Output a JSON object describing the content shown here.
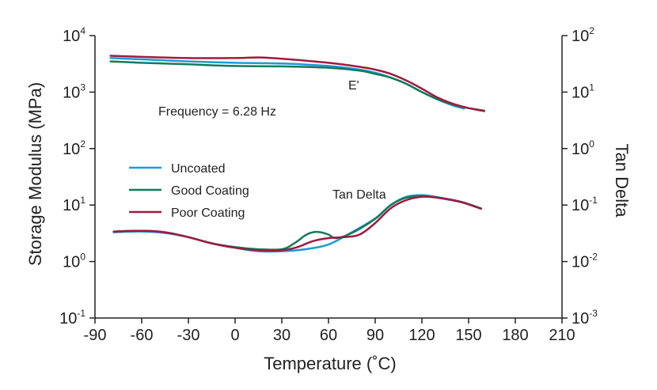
{
  "chart_data": {
    "type": "line",
    "xlabel": "Temperature (˚C)",
    "ylabel_left": "Storage Modulus (MPa)",
    "ylabel_right": "Tan Delta",
    "xlim": [
      -90,
      210
    ],
    "x_ticks": [
      "-90",
      "-60",
      "-30",
      "0",
      "30",
      "60",
      "90",
      "120",
      "150",
      "180",
      "210"
    ],
    "ylim_left": [
      0.1,
      10000
    ],
    "ylim_right": [
      0.001,
      100
    ],
    "y_scale": "log",
    "left_ticks": [
      {
        "base": "10",
        "exp": "4"
      },
      {
        "base": "10",
        "exp": "3"
      },
      {
        "base": "10",
        "exp": "2"
      },
      {
        "base": "10",
        "exp": "1"
      },
      {
        "base": "10",
        "exp": "0"
      },
      {
        "base": "10",
        "exp": "-1"
      }
    ],
    "right_ticks": [
      {
        "base": "10",
        "exp": "2"
      },
      {
        "base": "10",
        "exp": "1"
      },
      {
        "base": "10",
        "exp": "0"
      },
      {
        "base": "10",
        "exp": "-1"
      },
      {
        "base": "10",
        "exp": "-2"
      },
      {
        "base": "10",
        "exp": "-3"
      }
    ],
    "annotations": {
      "frequency": "Frequency = 6.28 Hz",
      "modulus": "E'",
      "tan_delta": "Tan Delta"
    },
    "legend_position": "middle-left",
    "grid": false,
    "series": [
      {
        "name": "Uncoated",
        "color": "#1e9ad6",
        "axis": "left",
        "x": [
          -80,
          -60,
          -30,
          0,
          30,
          60,
          80,
          90,
          100,
          110,
          120,
          130,
          140,
          147
        ],
        "values": [
          4000,
          3800,
          3500,
          3300,
          3200,
          2900,
          2500,
          2200,
          1800,
          1400,
          1000,
          740,
          580,
          510
        ]
      },
      {
        "name": "Good Coating",
        "color": "#137a5c",
        "axis": "left",
        "x": [
          -80,
          -60,
          -30,
          0,
          30,
          60,
          80,
          90,
          100,
          110,
          120,
          130,
          140,
          150,
          160
        ],
        "values": [
          3500,
          3300,
          3100,
          2900,
          2850,
          2700,
          2400,
          2100,
          1800,
          1400,
          1000,
          750,
          600,
          520,
          470
        ]
      },
      {
        "name": "Poor Coating",
        "color": "#9e1b3e",
        "axis": "left",
        "x": [
          -80,
          -60,
          -30,
          0,
          15,
          30,
          60,
          80,
          90,
          100,
          110,
          120,
          130,
          140,
          150,
          160
        ],
        "values": [
          4400,
          4200,
          4000,
          4000,
          4100,
          3900,
          3300,
          2800,
          2500,
          2100,
          1600,
          1150,
          800,
          620,
          520,
          460
        ]
      },
      {
        "name": "Uncoated",
        "color": "#1e9ad6",
        "axis": "right",
        "x": [
          -78,
          -60,
          -45,
          -30,
          -15,
          0,
          15,
          30,
          45,
          60,
          75,
          90,
          100,
          110,
          120,
          130,
          145,
          158
        ],
        "values": [
          0.033,
          0.034,
          0.032,
          0.027,
          0.021,
          0.0175,
          0.0152,
          0.0152,
          0.0165,
          0.02,
          0.033,
          0.058,
          0.1,
          0.14,
          0.15,
          0.138,
          0.115,
          0.087
        ]
      },
      {
        "name": "Good Coating",
        "color": "#137a5c",
        "axis": "right",
        "x": [
          -78,
          -60,
          -45,
          -30,
          -15,
          0,
          15,
          30,
          38,
          45,
          50,
          55,
          60,
          65,
          75,
          90,
          100,
          110,
          120,
          130,
          145,
          158
        ],
        "values": [
          0.034,
          0.035,
          0.033,
          0.027,
          0.021,
          0.018,
          0.0165,
          0.0165,
          0.021,
          0.029,
          0.033,
          0.033,
          0.03,
          0.026,
          0.032,
          0.057,
          0.1,
          0.135,
          0.145,
          0.135,
          0.113,
          0.087
        ]
      },
      {
        "name": "Poor Coating",
        "color": "#9e1b3e",
        "axis": "right",
        "x": [
          -78,
          -60,
          -45,
          -30,
          -15,
          0,
          15,
          30,
          40,
          50,
          60,
          70,
          80,
          90,
          100,
          110,
          120,
          130,
          145,
          158
        ],
        "values": [
          0.034,
          0.035,
          0.033,
          0.027,
          0.021,
          0.0175,
          0.0158,
          0.0158,
          0.018,
          0.023,
          0.026,
          0.027,
          0.03,
          0.048,
          0.088,
          0.122,
          0.14,
          0.135,
          0.113,
          0.086
        ]
      }
    ]
  }
}
